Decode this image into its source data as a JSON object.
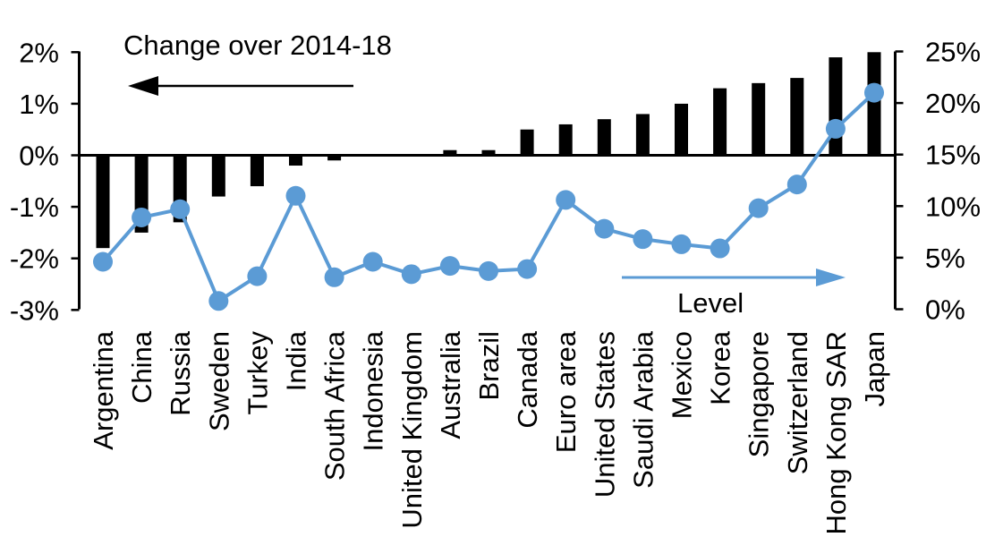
{
  "chart_data": {
    "type": "bar",
    "subtype": "combo-bar-and-line-dual-axis",
    "title": "",
    "categories": [
      "Argentina",
      "China",
      "Russia",
      "Sweden",
      "Turkey",
      "India",
      "South Africa",
      "Indonesia",
      "United Kingdom",
      "Australia",
      "Brazil",
      "Canada",
      "Euro area",
      "United States",
      "Saudi Arabia",
      "Mexico",
      "Korea",
      "Singapore",
      "Switzerland",
      "Hong Kong SAR",
      "Japan"
    ],
    "series": [
      {
        "name": "Change over 2014-18",
        "type": "bar",
        "axis": "left",
        "color": "#000000",
        "values": [
          -1.8,
          -1.5,
          -1.3,
          -0.8,
          -0.6,
          -0.2,
          -0.1,
          0,
          0,
          0.1,
          0.1,
          0.5,
          0.6,
          0.7,
          0.8,
          1.0,
          1.3,
          1.4,
          1.5,
          1.9,
          2.0
        ]
      },
      {
        "name": "Level",
        "type": "line",
        "axis": "right",
        "color": "#5B9BD5",
        "values": [
          4.6,
          8.9,
          9.7,
          0.8,
          3.2,
          11.0,
          3.1,
          4.6,
          3.4,
          4.2,
          3.7,
          3.9,
          10.6,
          7.8,
          6.8,
          6.3,
          5.9,
          9.8,
          12.1,
          17.5,
          21.0
        ]
      }
    ],
    "left_axis": {
      "min": -3,
      "max": 2,
      "tick_values": [
        2,
        1,
        0,
        -1,
        -2,
        -3
      ],
      "tick_labels": [
        "2%",
        "1%",
        "0%",
        "-1%",
        "-2%",
        "-3%"
      ]
    },
    "right_axis": {
      "min": 0,
      "max": 25,
      "tick_values": [
        25,
        20,
        15,
        10,
        5,
        0
      ],
      "tick_labels": [
        "25%",
        "20%",
        "15%",
        "10%",
        "5%",
        "0%"
      ]
    },
    "grid": false,
    "legend": {
      "change_label": "Change over 2014-18",
      "level_label": "Level",
      "change_arrow_direction": "left",
      "level_arrow_direction": "right",
      "change_arrow_color": "#000000",
      "level_arrow_color": "#5B9BD5"
    }
  }
}
